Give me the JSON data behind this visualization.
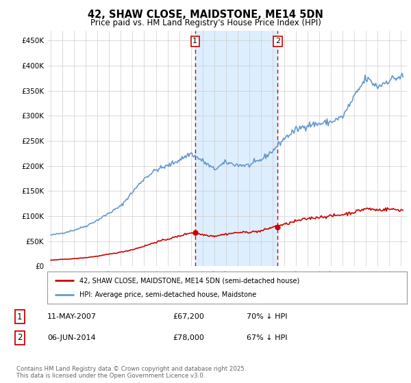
{
  "title": "42, SHAW CLOSE, MAIDSTONE, ME14 5DN",
  "subtitle": "Price paid vs. HM Land Registry's House Price Index (HPI)",
  "legend_line1": "42, SHAW CLOSE, MAIDSTONE, ME14 5DN (semi-detached house)",
  "legend_line2": "HPI: Average price, semi-detached house, Maidstone",
  "footnote": "Contains HM Land Registry data © Crown copyright and database right 2025.\nThis data is licensed under the Open Government Licence v3.0.",
  "transaction1_date": "11-MAY-2007",
  "transaction1_price": "£67,200",
  "transaction1_hpi": "70% ↓ HPI",
  "transaction2_date": "06-JUN-2014",
  "transaction2_price": "£78,000",
  "transaction2_hpi": "67% ↓ HPI",
  "transaction1_x": 2007.36,
  "transaction2_x": 2014.43,
  "transaction1_price_val": 67200,
  "transaction2_price_val": 78000,
  "highlight_color": "#ddeeff",
  "vline_color": "#cc0000",
  "red_line_color": "#cc0000",
  "blue_line_color": "#6699cc",
  "background_color": "#ffffff",
  "grid_color": "#cccccc",
  "ylim": [
    0,
    470000
  ],
  "yticks": [
    0,
    50000,
    100000,
    150000,
    200000,
    250000,
    300000,
    350000,
    400000,
    450000
  ],
  "xlim_left": 1994.7,
  "xlim_right": 2025.5
}
